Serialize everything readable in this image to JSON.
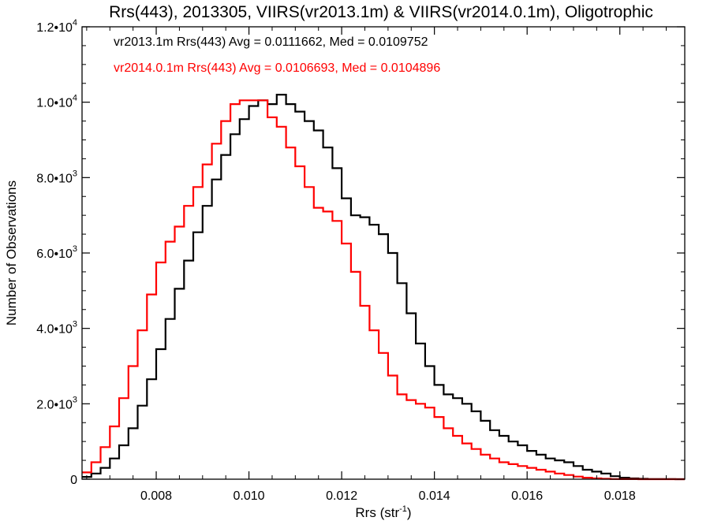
{
  "chart_data": {
    "type": "line",
    "title": "Rrs(443), 2013305, VIIRS(vr2013.1m) & VIIRS(vr2014.0.1m), Oligotrophic",
    "xlabel": {
      "base": "Rrs (str",
      "sup": "-1",
      "end": ")"
    },
    "ylabel": "Number of Observations",
    "xlim": [
      0.0064,
      0.0194
    ],
    "ylim": [
      0,
      12000
    ],
    "xticks": [
      0.008,
      0.01,
      0.012,
      0.014,
      0.016,
      0.018
    ],
    "xtick_labels": [
      "0.008",
      "0.010",
      "0.012",
      "0.014",
      "0.016",
      "0.018"
    ],
    "yticks": [
      {
        "value": 0,
        "mant": "0",
        "exp": ""
      },
      {
        "value": 2000,
        "mant": "2.0•10",
        "exp": "3"
      },
      {
        "value": 4000,
        "mant": "4.0•10",
        "exp": "3"
      },
      {
        "value": 6000,
        "mant": "6.0•10",
        "exp": "3"
      },
      {
        "value": 8000,
        "mant": "8.0•10",
        "exp": "3"
      },
      {
        "value": 10000,
        "mant": "1.0•10",
        "exp": "4"
      },
      {
        "value": 12000,
        "mant": "1.2•10",
        "exp": "4"
      }
    ],
    "grid": false,
    "legend_position": "top-left",
    "series": [
      {
        "name": "vr2013.1m Rrs(443) Avg = 0.0111662, Med = 0.0109752",
        "color": "#000000",
        "x": [
          0.0064,
          0.0066,
          0.0068,
          0.007,
          0.0072,
          0.0074,
          0.0076,
          0.0078,
          0.008,
          0.0082,
          0.0084,
          0.0086,
          0.0088,
          0.009,
          0.0092,
          0.0094,
          0.0096,
          0.0098,
          0.01,
          0.0102,
          0.0104,
          0.0106,
          0.0108,
          0.011,
          0.0112,
          0.0114,
          0.0116,
          0.0118,
          0.012,
          0.0122,
          0.0124,
          0.0126,
          0.0128,
          0.013,
          0.0132,
          0.0134,
          0.0136,
          0.0138,
          0.014,
          0.0142,
          0.0144,
          0.0146,
          0.0148,
          0.015,
          0.0152,
          0.0154,
          0.0156,
          0.0158,
          0.016,
          0.0162,
          0.0164,
          0.0166,
          0.0168,
          0.017,
          0.0172,
          0.0174,
          0.0176,
          0.0178,
          0.018,
          0.0182,
          0.0184,
          0.0186,
          0.0188,
          0.019,
          0.0192,
          0.0194
        ],
        "y": [
          60,
          150,
          300,
          550,
          900,
          1350,
          1950,
          2650,
          3450,
          4250,
          5050,
          5800,
          6550,
          7250,
          7950,
          8600,
          9150,
          9550,
          9900,
          10050,
          9950,
          10200,
          9950,
          9750,
          9500,
          9250,
          8800,
          8250,
          7450,
          7000,
          6950,
          6750,
          6500,
          6000,
          5200,
          4400,
          3600,
          3000,
          2500,
          2250,
          2150,
          2000,
          1800,
          1550,
          1300,
          1150,
          1000,
          900,
          750,
          650,
          550,
          500,
          450,
          350,
          250,
          200,
          150,
          80,
          40,
          20,
          10,
          5,
          3,
          2,
          1,
          0
        ]
      },
      {
        "name": "vr2014.0.1m Rrs(443) Avg = 0.0106693, Med = 0.0104896",
        "color": "#ff0000",
        "x": [
          0.0064,
          0.0066,
          0.0068,
          0.007,
          0.0072,
          0.0074,
          0.0076,
          0.0078,
          0.008,
          0.0082,
          0.0084,
          0.0086,
          0.0088,
          0.009,
          0.0092,
          0.0094,
          0.0096,
          0.0098,
          0.01,
          0.0102,
          0.0104,
          0.0106,
          0.0108,
          0.011,
          0.0112,
          0.0114,
          0.0116,
          0.0118,
          0.012,
          0.0122,
          0.0124,
          0.0126,
          0.0128,
          0.013,
          0.0132,
          0.0134,
          0.0136,
          0.0138,
          0.014,
          0.0142,
          0.0144,
          0.0146,
          0.0148,
          0.015,
          0.0152,
          0.0154,
          0.0156,
          0.0158,
          0.016,
          0.0162,
          0.0164,
          0.0166,
          0.0168,
          0.017,
          0.0172,
          0.0174,
          0.0176,
          0.0178,
          0.018,
          0.0182,
          0.0184,
          0.0186,
          0.0188,
          0.019,
          0.0192,
          0.0194
        ],
        "y": [
          180,
          450,
          850,
          1400,
          2150,
          3000,
          3950,
          4900,
          5750,
          6300,
          6700,
          7250,
          7750,
          8350,
          8900,
          9500,
          9950,
          10050,
          10050,
          10050,
          9600,
          9350,
          8800,
          8300,
          7750,
          7200,
          7100,
          6850,
          6250,
          5500,
          4600,
          3950,
          3350,
          2750,
          2250,
          2100,
          2000,
          1900,
          1650,
          1350,
          1150,
          950,
          800,
          650,
          550,
          450,
          400,
          350,
          300,
          250,
          200,
          150,
          110,
          70,
          40,
          20,
          10,
          5,
          3,
          2,
          1,
          0,
          0,
          0,
          0,
          0
        ]
      }
    ]
  }
}
